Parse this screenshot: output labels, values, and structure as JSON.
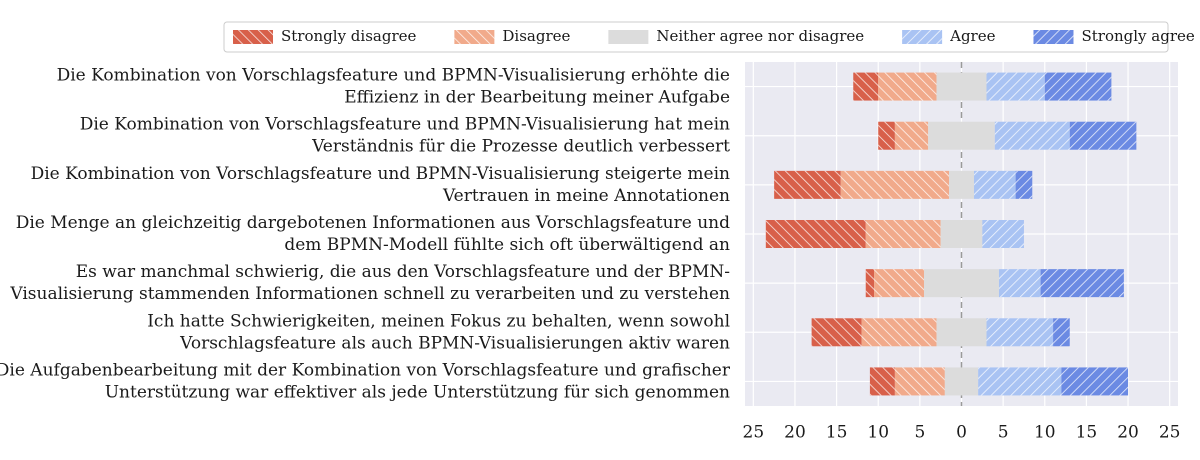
{
  "chart_data": {
    "type": "bar",
    "subtype": "diverging-stacked-horizontal",
    "title": "",
    "xlabel": "",
    "ylabel": "",
    "xlim": [
      -26,
      26
    ],
    "xticks": [
      -25,
      -20,
      -15,
      -10,
      -5,
      0,
      5,
      10,
      15,
      20,
      25
    ],
    "xtick_labels": [
      "25",
      "20",
      "15",
      "10",
      "5",
      "0",
      "5",
      "10",
      "15",
      "20",
      "25"
    ],
    "grid": true,
    "center_line": "dashed at 0",
    "legend_position": "top-right",
    "categories": [
      [
        "Die Kombination von Vorschlagsfeature und BPMN-Visualisierung erhöhte die",
        "Effizienz in der Bearbeitung meiner Aufgabe"
      ],
      [
        "Die Kombination von Vorschlagsfeature und BPMN-Visualisierung hat mein",
        "Verständnis für die Prozesse deutlich verbessert"
      ],
      [
        "Die Kombination von Vorschlagsfeature und BPMN-Visualisierung steigerte mein",
        "Vertrauen in meine Annotationen"
      ],
      [
        "Die Menge an gleichzeitig dargebotenen Informationen aus Vorschlagsfeature und",
        "dem BPMN-Modell fühlte sich oft überwältigend an"
      ],
      [
        "Es war manchmal schwierig, die aus den Vorschlagsfeature und der BPMN-",
        "Visualisierung stammenden Informationen schnell zu verarbeiten und zu verstehen"
      ],
      [
        "Ich hatte Schwierigkeiten, meinen Fokus zu behalten, wenn sowohl",
        "Vorschlagsfeature als auch BPMN-Visualisierungen aktiv waren"
      ],
      [
        "Die Aufgabenbearbeitung mit der Kombination von Vorschlagsfeature und grafischer",
        "Unterstützung war effektiver als jede Unterstützung für sich genommen"
      ]
    ],
    "series": [
      {
        "name": "Strongly disagree",
        "color": "#d8604a",
        "values": [
          3,
          2,
          8,
          12,
          1,
          6,
          3
        ]
      },
      {
        "name": "Disagree",
        "color": "#f1aa8b",
        "values": [
          7,
          4,
          13,
          9,
          6,
          9,
          6
        ]
      },
      {
        "name": "Neither agree nor disagree",
        "color": "#dcdcdc",
        "values": [
          6,
          8,
          3,
          5,
          9,
          6,
          4
        ]
      },
      {
        "name": "Agree",
        "color": "#a9c3f3",
        "values": [
          7,
          9,
          5,
          5,
          5,
          8,
          10
        ]
      },
      {
        "name": "Strongly agree",
        "color": "#6b8ae3",
        "values": [
          8,
          8,
          2,
          0,
          10,
          2,
          8
        ]
      }
    ]
  }
}
